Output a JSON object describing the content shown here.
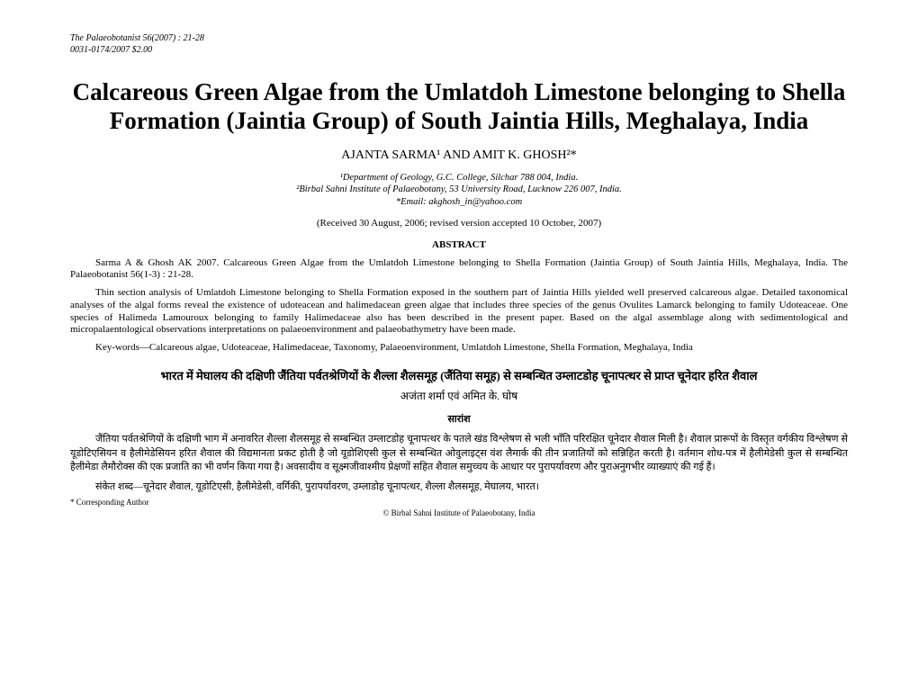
{
  "header": {
    "journal_line": "The Palaeobotanist 56(2007) : 21-28",
    "issn_line": "0031-0174/2007    $2.00"
  },
  "title": "Calcareous Green Algae from the Umlatdoh Limestone belonging to Shella Formation (Jaintia Group) of South Jaintia Hills, Meghalaya, India",
  "authors": "AJANTA SARMA¹ AND AMIT K. GHOSH²*",
  "affiliations": {
    "line1": "¹Department of Geology, G.C. College, Silchar 788 004, India.",
    "line2": "²Birbal Sahni Institute of Palaeobotany, 53 University Road, Lucknow 226 007, India.",
    "line3": "*Email: akghosh_in@yahoo.com"
  },
  "received": "(Received 30 August, 2006; revised version accepted 10 October, 2007)",
  "abstract": {
    "heading": "ABSTRACT",
    "citation": "Sarma A & Ghosh AK 2007. Calcareous Green Algae from the Umlatdoh Limestone belonging to Shella Formation (Jaintia Group) of South Jaintia Hills, Meghalaya, India. The Palaeobotanist 56(1-3) : 21-28.",
    "body": "Thin section analysis of Umlatdoh Limestone belonging to Shella Formation exposed in the southern part of Jaintia Hills yielded well preserved calcareous algae. Detailed taxonomical analyses of the algal forms reveal the existence of udoteacean and halimedacean green algae that includes three species of the genus Ovulites Lamarck belonging to family Udoteaceae. One species of Halimeda Lamouroux belonging to family Halimedaceae also has been described in the present paper. Based on the algal assemblage along with sedimentological and micropalaentological observations interpretations on palaeoenvironment and palaeobathymetry have been made.",
    "keywords": "Key-words—Calcareous algae, Udoteaceae, Halimedaceae, Taxonomy, Palaeoenvironment, Umlatdoh Limestone, Shella Formation, Meghalaya, India"
  },
  "hindi": {
    "title": "भारत में मेघालय की दक्षिणी जैंतिया पर्वतश्रेणियों के शैल्ला शैलसमूह (जैंतिया समूह) से सम्बन्धित उम्लाटडोह चूनापत्थर से प्राप्त चूनेदार हरित शैवाल",
    "authors": "अजंता शर्मा एवं अमित के. घोष",
    "abstract_heading": "सारांश",
    "body": "जैंतिया पर्वतश्रेणियों के दक्षिणी भाग में अनावरित शैल्ला शैलसमूह से सम्बन्धित उम्लाटडोह चूनापत्थर के पतले खंड विश्लेषण से भली भाँति परिरक्षित चूनेदार शैवाल मिली है। शैवाल प्रारूपों के विस्तृत वर्गकीय विश्लेषण से यूडोटिएसियन व हैलीमेडेसियन हरित शैवाल की विद्यमानता प्रकट होती है जो यूडोशिएसी कुल से सम्बन्धित ओवुलाइट्स वंश लैमार्क की तीन प्रजातियों को सन्निहित करती है। वर्तमान शोध-पत्र में हैलीमेडेसी कुल से सम्बन्धित हैलीमेडा लैमौरोक्स की एक प्रजाति का भी वर्णन किया गया है। अवसादीय व सूक्ष्मजीवाश्मीय प्रेक्षणों सहित शैवाल समुच्चय के आधार पर पुरापर्यावरण और पुराअनुगभीर व्याख्याएं की गई हैं।",
    "keywords": "संकेत शब्द—चूनेदार शैवाल, यूडोटिएसी, हैलीमेडेसी, वर्गिकी, पुरापर्यावरण, उम्लाडोह चूनापत्थर, शैल्ला शैलसमूह, मेघालय, भारत।"
  },
  "footer": {
    "corresponding": "* Corresponding Author",
    "copyright": "© Birbal Sahni Institute of Palaeobotany, India"
  }
}
